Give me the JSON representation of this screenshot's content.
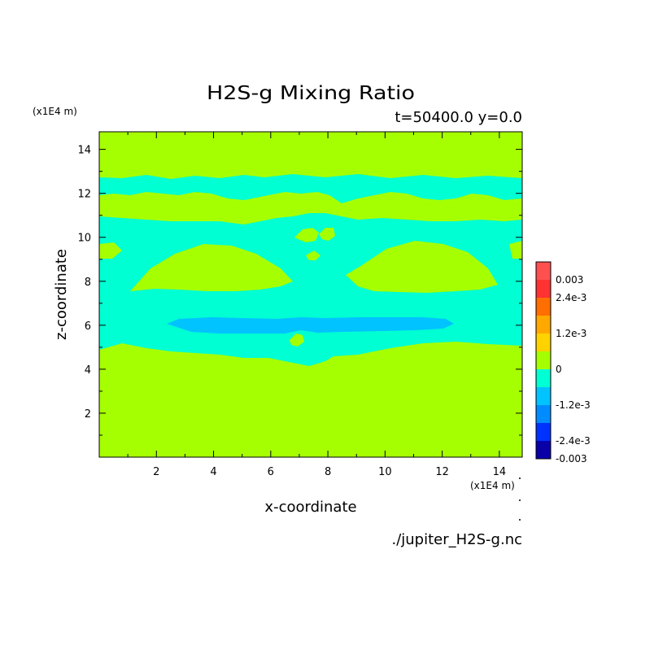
{
  "chart_data": {
    "type": "heatmap",
    "title": "H2S-g Mixing Ratio",
    "subtitle": "t=50400.0 y=0.0",
    "xlabel": "x-coordinate",
    "ylabel": "z-coordinate",
    "x_unit": "(x1E4 m)",
    "y_unit": "(x1E4 m)",
    "source_file": "./jupiter_H2S-g.nc",
    "xlim": [
      0,
      14.8
    ],
    "ylim": [
      0,
      14.8
    ],
    "xticks": [
      2,
      4,
      6,
      8,
      10,
      12,
      14
    ],
    "yticks": [
      2,
      4,
      6,
      8,
      10,
      12,
      14
    ],
    "colorbar": {
      "range": [
        -0.003,
        0.003
      ],
      "tick_labels": [
        "0.003",
        "2.4e-3",
        "1.2e-3",
        "0",
        "-1.2e-3",
        "-2.4e-3",
        "-0.003"
      ],
      "tick_values": [
        0.003,
        0.0024,
        0.0012,
        0,
        -0.0012,
        -0.0024,
        -0.003
      ],
      "levels": [
        {
          "from": -0.003,
          "to": -0.0024,
          "color": "#0a00a8"
        },
        {
          "from": -0.0024,
          "to": -0.0018,
          "color": "#0032ff"
        },
        {
          "from": -0.0018,
          "to": -0.0012,
          "color": "#008cff"
        },
        {
          "from": -0.0012,
          "to": -0.0006,
          "color": "#00c3ff"
        },
        {
          "from": -0.0006,
          "to": 0,
          "color": "#00ffd2"
        },
        {
          "from": 0,
          "to": 0.0006,
          "color": "#a6ff00"
        },
        {
          "from": 0.0006,
          "to": 0.0012,
          "color": "#ffd200"
        },
        {
          "from": 0.0012,
          "to": 0.0018,
          "color": "#ffa800"
        },
        {
          "from": 0.0018,
          "to": 0.0024,
          "color": "#ff6e00"
        },
        {
          "from": 0.0024,
          "to": 0.003,
          "color": "#ff3232"
        },
        {
          "from": 0.003,
          "to": 0.0036,
          "color": "#ff5050"
        }
      ]
    },
    "field": {
      "background_level": "0 to 6e-4",
      "regions": [
        {
          "name": "upper-band",
          "z_range": [
            11.8,
            12.8
          ],
          "level": "-6e-4 to 0"
        },
        {
          "name": "upper-mid-band",
          "z_range": [
            10.0,
            11.3
          ],
          "level": "-6e-4 to 0"
        },
        {
          "name": "middle-layer",
          "z_range": [
            5.0,
            10.0
          ],
          "level": "-6e-4 to 0"
        },
        {
          "name": "lens-left",
          "x_range": [
            2.0,
            7.6
          ],
          "z_range": [
            7.4,
            9.8
          ],
          "level": "0 to 6e-4"
        },
        {
          "name": "lens-right",
          "x_range": [
            8.4,
            14.0
          ],
          "z_range": [
            7.4,
            9.8
          ],
          "level": "0 to 6e-4"
        },
        {
          "name": "minimum-band",
          "x_range": [
            2.4,
            12.5
          ],
          "z_range": [
            5.8,
            6.4
          ],
          "level": "-1.2e-3 to -6e-4"
        }
      ]
    }
  }
}
